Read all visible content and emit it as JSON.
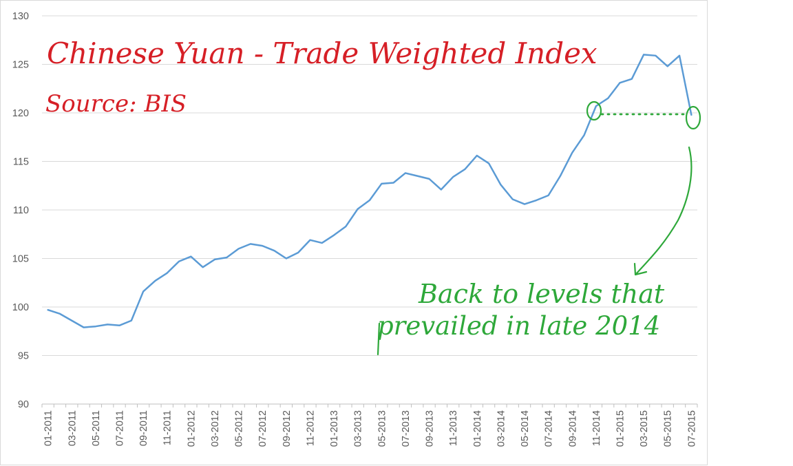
{
  "chart_data": {
    "type": "line",
    "title": "Chinese Yuan - Trade Weighted Index",
    "subtitle": "Source: BIS",
    "xlabel": "",
    "ylabel": "",
    "ylim": [
      90,
      130
    ],
    "yticks": [
      90,
      95,
      100,
      105,
      110,
      115,
      120,
      125,
      130
    ],
    "grid": true,
    "line_color": "#5b9bd5",
    "tick_labels": [
      "01-2011",
      "03-2011",
      "05-2011",
      "07-2011",
      "09-2011",
      "11-2011",
      "01-2012",
      "03-2012",
      "05-2012",
      "07-2012",
      "09-2012",
      "11-2012",
      "01-2013",
      "03-2013",
      "05-2013",
      "07-2013",
      "09-2013",
      "11-2013",
      "01-2014",
      "03-2014",
      "05-2014",
      "07-2014",
      "09-2014",
      "11-2014",
      "01-2015",
      "03-2015",
      "05-2015",
      "07-2015"
    ],
    "series": [
      {
        "values": [
          99.7,
          99.3,
          98.6,
          97.9,
          98.0,
          98.2,
          98.1,
          98.6,
          101.6,
          102.7,
          103.5,
          104.7,
          105.2,
          104.1,
          104.9,
          105.1,
          106.0,
          106.5,
          106.3,
          105.8,
          105.0,
          105.6,
          106.9,
          106.6,
          107.4,
          108.3,
          110.1,
          111.0,
          112.7,
          112.8,
          113.8,
          113.5,
          113.2,
          112.1,
          113.4,
          114.2,
          115.6,
          114.8,
          112.6,
          111.1,
          110.6,
          111.0,
          111.5,
          113.5,
          115.9,
          117.7,
          120.7,
          121.5,
          123.1,
          123.5,
          126.0,
          125.9,
          124.8,
          125.9,
          119.8
        ]
      }
    ]
  },
  "annotations": {
    "title_line": "Chinese Yuan - Trade Weighted Index",
    "source_line": "Source: BIS",
    "note_line1": "Back to levels that",
    "note_line2": "prevailed in late 2014",
    "red_color": "#d61f26",
    "green_color": "#2ea83a"
  }
}
